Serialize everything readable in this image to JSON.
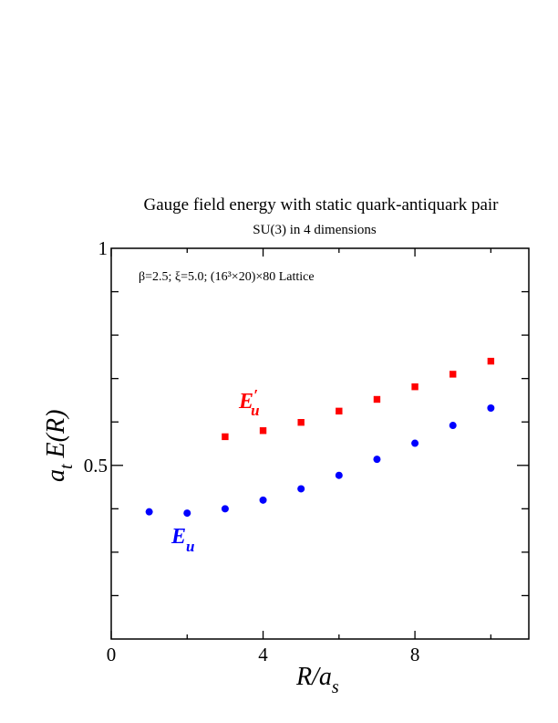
{
  "chart_data": {
    "type": "scatter",
    "title": "Gauge field energy with static quark-antiquark pair",
    "subtitle": "SU(3) in 4 dimensions",
    "annotation": "β=2.5; ξ=5.0; (16³×20)×80 Lattice",
    "xlabel": "R/a_s",
    "ylabel": "a_t E(R)",
    "xlim": [
      0,
      11
    ],
    "ylim": [
      0.1,
      1.0
    ],
    "x_ticks": [
      0,
      4,
      8
    ],
    "y_ticks": [
      0.5,
      1
    ],
    "x_tick_labels": [
      "0",
      "4",
      "8"
    ],
    "y_tick_labels": [
      "0.5",
      "1"
    ],
    "grid": false,
    "series": [
      {
        "name": "E_u",
        "label_main": "E",
        "label_sub": "u",
        "marker": "circle",
        "color": "#0000ff",
        "x": [
          1,
          2,
          3,
          4,
          5,
          6,
          7,
          8,
          9,
          10
        ],
        "y": [
          0.393,
          0.39,
          0.4,
          0.42,
          0.446,
          0.477,
          0.514,
          0.551,
          0.592,
          0.632
        ]
      },
      {
        "name": "E'_u",
        "label_main": "E",
        "label_prime": "′",
        "label_sub": "u",
        "marker": "square",
        "color": "#ff0000",
        "x": [
          3,
          4,
          5,
          6,
          7,
          8,
          9,
          10
        ],
        "y": [
          0.566,
          0.58,
          0.599,
          0.625,
          0.652,
          0.681,
          0.71,
          0.74
        ]
      }
    ]
  }
}
